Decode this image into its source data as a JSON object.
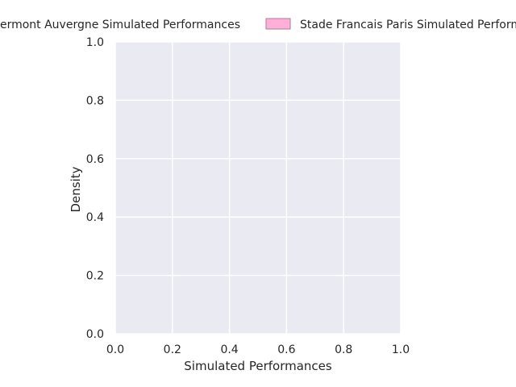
{
  "chart_data": {
    "type": "area",
    "xlabel": "Simulated Performances",
    "ylabel": "Density",
    "xlim": [
      0.0,
      1.0
    ],
    "ylim": [
      0.0,
      1.0
    ],
    "x_ticks": [
      "0.0",
      "0.2",
      "0.4",
      "0.6",
      "0.8",
      "1.0"
    ],
    "y_ticks": [
      "0.0",
      "0.2",
      "0.4",
      "0.6",
      "0.8",
      "1.0"
    ],
    "grid": true,
    "legend_position": "top-center, above plot",
    "series": [
      {
        "name": "Clermont Auvergne Simulated Performances",
        "color": "#a1c9f4",
        "values": []
      },
      {
        "name": "Stade Francais Paris Simulated Performances",
        "color": "#ffb0d8",
        "values": []
      }
    ],
    "colors": {
      "plot_background": "#eaeaf2",
      "grid": "#ffffff",
      "text": "#262626"
    }
  }
}
